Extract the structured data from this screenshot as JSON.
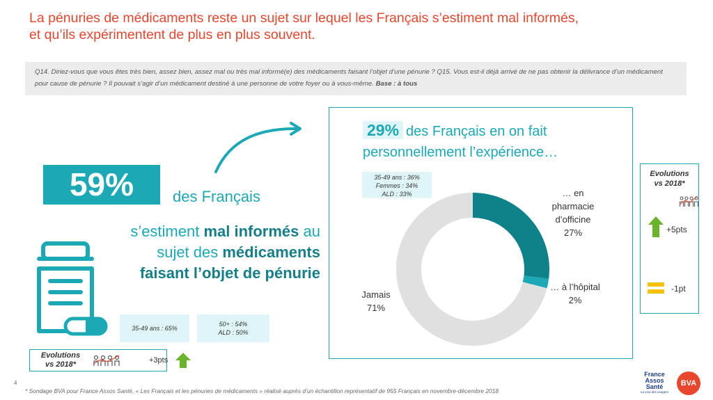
{
  "title": {
    "line1": "La pénuries de médicaments reste un sujet sur lequel les Français s’estiment mal informés,",
    "line2": "et qu’ils expérimentent de plus en plus souvent."
  },
  "question": {
    "text": "Q14. Diriez-vous que vous êtes très bien, assez bien, assez mal ou très mal informé(e) des médicaments faisant l’objet d’une pénurie ? Q15. Vous est-il déjà arrivé de ne pas obtenir la délivrance d’un médicament pour cause de pénurie ? Il pouvait s’agir d’un médicament destiné à une personne de votre foyer ou à vous-même.",
    "base": "Base : à tous"
  },
  "left": {
    "big_pct": "59%",
    "des_francais": "des Français",
    "line1_pre": "s’estiment ",
    "line1_bold": "mal informés",
    "line1_post": " au",
    "line2_pre": "sujet des ",
    "line2_bold": "médicaments",
    "line3_bold": "faisant l’objet de pénurie",
    "badge1": "35-49 ans : 65%",
    "badge2_l1": "50+ : 54%",
    "badge2_l2": "ALD : 50%",
    "evolution_label_l1": "Evolutions",
    "evolution_label_l2": "vs 2018*",
    "evolution_value": "+3pts",
    "arrow_color": "#6ab42d",
    "accent_color": "#1ba9b5"
  },
  "right": {
    "head_pct": "29%",
    "head_l1": "des Français en on fait",
    "head_l2": "personnellement l’expérience…",
    "badge_l1": "35-49 ans : 36%",
    "badge_l2": "Femmes : 34%",
    "badge_l3": "ALD : 33%",
    "label_pharma_l1": "… en",
    "label_pharma_l2": "pharmacie",
    "label_pharma_l3": "d’officine",
    "label_pharma_pct": "27%",
    "label_hopital_l1": "… à l’hôpital",
    "label_hopital_pct": "2%",
    "label_jamais_l1": "Jamais",
    "label_jamais_pct": "71%"
  },
  "chart_data": {
    "type": "pie",
    "variant": "donut",
    "slices": [
      {
        "label": "… en pharmacie d’officine",
        "value": 27,
        "color": "#0e8189"
      },
      {
        "label": "… à l’hôpital",
        "value": 2,
        "color": "#1ba9b5"
      },
      {
        "label": "Jamais",
        "value": 71,
        "color": "#e0e0e0"
      }
    ]
  },
  "evolution_right": {
    "label_l1": "Evolutions",
    "label_l2": "vs 2018*",
    "value_up": "+5pts",
    "value_flat": "-1pt",
    "up_color": "#6ab42d",
    "flat_color": "#f4c20d"
  },
  "footer": {
    "note": "* Sondage BVA pour France Assos Santé, « Les Français et les pénuries de médicaments » réalisé auprès d’un échantillon représentatif de 955 Français en novembre-décembre 2018",
    "page": "4"
  },
  "logos": {
    "fas_l1": "France",
    "fas_l2": "Assos",
    "fas_l3": "Santé",
    "fas_sub": "La voix des usagers",
    "bva": "BVA"
  }
}
